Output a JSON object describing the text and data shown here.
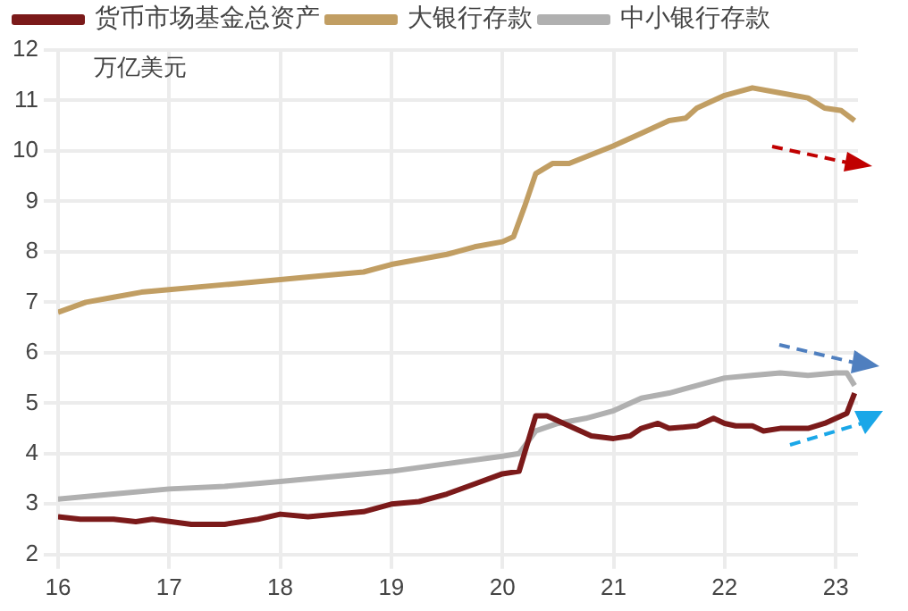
{
  "chart_data": {
    "type": "line",
    "ylabel": "万亿美元",
    "xlim": [
      16,
      23.2
    ],
    "xticks": [
      16,
      17,
      18,
      19,
      20,
      21,
      22,
      23
    ],
    "ylim": [
      2,
      12
    ],
    "yticks": [
      2,
      3,
      4,
      5,
      6,
      7,
      8,
      9,
      10,
      11,
      12
    ],
    "grid": true,
    "legend": "top",
    "marker": "none",
    "line_style": "solid",
    "series": [
      {
        "name": "货币市场基金总资产",
        "color": "#7b1a1a",
        "x": [
          16,
          16.2,
          16.5,
          16.7,
          16.85,
          17.2,
          17.5,
          17.8,
          18,
          18.25,
          18.5,
          18.75,
          19,
          19.25,
          19.5,
          19.75,
          20,
          20.15,
          20.3,
          20.4,
          20.6,
          20.8,
          21,
          21.15,
          21.25,
          21.4,
          21.5,
          21.75,
          21.9,
          22,
          22.1,
          22.25,
          22.35,
          22.5,
          22.75,
          22.9,
          23.1,
          23.17
        ],
        "values": [
          2.75,
          2.7,
          2.7,
          2.65,
          2.7,
          2.6,
          2.6,
          2.7,
          2.8,
          2.75,
          2.8,
          2.85,
          3,
          3.05,
          3.2,
          3.4,
          3.6,
          3.65,
          4.75,
          4.75,
          4.55,
          4.35,
          4.3,
          4.35,
          4.5,
          4.6,
          4.5,
          4.55,
          4.7,
          4.6,
          4.55,
          4.55,
          4.45,
          4.5,
          4.5,
          4.6,
          4.8,
          5.2
        ]
      },
      {
        "name": "大银行存款",
        "color": "#c19e63",
        "x": [
          16,
          16.25,
          16.5,
          16.75,
          17,
          17.5,
          18,
          18.5,
          18.75,
          19,
          19.5,
          19.75,
          20,
          20.1,
          20.2,
          20.3,
          20.45,
          20.6,
          21,
          21.25,
          21.5,
          21.65,
          21.75,
          22,
          22.25,
          22.5,
          22.75,
          22.9,
          23.05,
          23.17
        ],
        "values": [
          6.8,
          7,
          7.1,
          7.2,
          7.25,
          7.35,
          7.45,
          7.55,
          7.6,
          7.75,
          7.95,
          8.1,
          8.2,
          8.3,
          8.9,
          9.55,
          9.75,
          9.75,
          10.1,
          10.35,
          10.6,
          10.65,
          10.85,
          11.1,
          11.25,
          11.15,
          11.05,
          10.85,
          10.8,
          10.6
        ]
      },
      {
        "name": "中小银行存款",
        "color": "#b0b0b0",
        "x": [
          16,
          16.5,
          17,
          17.5,
          18,
          18.5,
          19,
          19.5,
          20,
          20.15,
          20.3,
          20.5,
          20.75,
          21,
          21.25,
          21.5,
          21.75,
          22,
          22.25,
          22.5,
          22.75,
          23,
          23.1,
          23.17
        ],
        "values": [
          3.1,
          3.2,
          3.3,
          3.35,
          3.45,
          3.55,
          3.65,
          3.8,
          3.95,
          4,
          4.45,
          4.6,
          4.7,
          4.85,
          5.1,
          5.2,
          5.35,
          5.5,
          5.55,
          5.6,
          5.55,
          5.6,
          5.6,
          5.35
        ]
      }
    ]
  }
}
